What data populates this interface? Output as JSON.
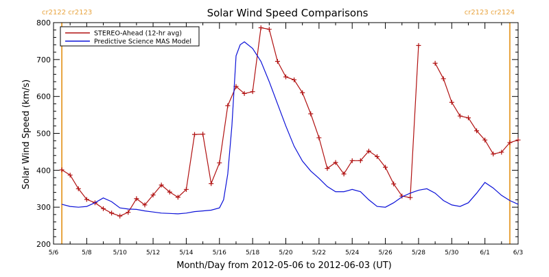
{
  "chart_data": {
    "type": "line",
    "title": "Solar Wind Speed Comparisons",
    "xlabel": "Month/Day from 2012-05-06 to 2012-06-03 (UT)",
    "ylabel": "Solar Wind Speed (km/s)",
    "xlim": [
      "2012-05-06",
      "2012-06-03"
    ],
    "ylim": [
      200,
      800
    ],
    "x_ticks": [
      {
        "date": "2012-05-06",
        "label": "5/6"
      },
      {
        "date": "2012-05-08",
        "label": "5/8"
      },
      {
        "date": "2012-05-10",
        "label": "5/10"
      },
      {
        "date": "2012-05-12",
        "label": "5/12"
      },
      {
        "date": "2012-05-14",
        "label": "5/14"
      },
      {
        "date": "2012-05-16",
        "label": "5/16"
      },
      {
        "date": "2012-05-18",
        "label": "5/18"
      },
      {
        "date": "2012-05-20",
        "label": "5/20"
      },
      {
        "date": "2012-05-22",
        "label": "5/22"
      },
      {
        "date": "2012-05-24",
        "label": "5/24"
      },
      {
        "date": "2012-05-26",
        "label": "5/26"
      },
      {
        "date": "2012-05-28",
        "label": "5/28"
      },
      {
        "date": "2012-05-30",
        "label": "5/30"
      },
      {
        "date": "2012-06-01",
        "label": "6/1"
      },
      {
        "date": "2012-06-03",
        "label": "6/3"
      }
    ],
    "y_ticks": [
      200,
      300,
      400,
      500,
      600,
      700,
      800
    ],
    "grid": false,
    "legend_position": "top-left",
    "carrington_markers": [
      {
        "date": "2012-05-06 12:00",
        "labels": [
          "cr2122",
          "cr2123"
        ],
        "color": "#e8a33d",
        "align": "left"
      },
      {
        "date": "2012-06-02 12:00",
        "labels": [
          "cr2123",
          "cr2124"
        ],
        "color": "#e8a33d",
        "align": "right"
      }
    ],
    "series": [
      {
        "name": "STEREO-Ahead (12-hr avg)",
        "color": "#b01010",
        "marker": "plus",
        "segments": [
          [
            [
              "2012-05-06 12:00",
              401
            ],
            [
              "2012-05-07 00:00",
              387
            ],
            [
              "2012-05-07 12:00",
              350
            ],
            [
              "2012-05-08 00:00",
              321
            ],
            [
              "2012-05-08 12:00",
              312
            ],
            [
              "2012-05-09 00:00",
              296
            ],
            [
              "2012-05-09 12:00",
              284
            ],
            [
              "2012-05-10 00:00",
              276
            ],
            [
              "2012-05-10 12:00",
              286
            ],
            [
              "2012-05-11 00:00",
              323
            ],
            [
              "2012-05-11 12:00",
              306
            ],
            [
              "2012-05-12 00:00",
              333
            ],
            [
              "2012-05-12 12:00",
              360
            ],
            [
              "2012-05-13 00:00",
              341
            ],
            [
              "2012-05-13 12:00",
              327
            ],
            [
              "2012-05-14 00:00",
              348
            ],
            [
              "2012-05-14 12:00",
              497
            ],
            [
              "2012-05-15 00:00",
              498
            ],
            [
              "2012-05-15 12:00",
              364
            ],
            [
              "2012-05-16 00:00",
              420
            ],
            [
              "2012-05-16 12:00",
              575
            ],
            [
              "2012-05-17 00:00",
              627
            ],
            [
              "2012-05-17 12:00",
              608
            ],
            [
              "2012-05-18 00:00",
              613
            ],
            [
              "2012-05-18 12:00",
              786
            ],
            [
              "2012-05-19 00:00",
              782
            ],
            [
              "2012-05-19 12:00",
              695
            ],
            [
              "2012-05-20 00:00",
              653
            ],
            [
              "2012-05-20 12:00",
              645
            ],
            [
              "2012-05-21 00:00",
              610
            ],
            [
              "2012-05-21 12:00",
              553
            ],
            [
              "2012-05-22 00:00",
              488
            ],
            [
              "2012-05-22 12:00",
              405
            ],
            [
              "2012-05-23 00:00",
              421
            ],
            [
              "2012-05-23 12:00",
              390
            ],
            [
              "2012-05-24 00:00",
              426
            ],
            [
              "2012-05-24 12:00",
              426
            ],
            [
              "2012-05-25 00:00",
              452
            ],
            [
              "2012-05-25 12:00",
              437
            ],
            [
              "2012-05-26 00:00",
              408
            ],
            [
              "2012-05-26 12:00",
              363
            ],
            [
              "2012-05-27 00:00",
              330
            ],
            [
              "2012-05-27 12:00",
              326
            ],
            [
              "2012-05-28 00:00",
              738
            ]
          ],
          [
            [
              "2012-05-29 00:00",
              690
            ],
            [
              "2012-05-29 12:00",
              648
            ],
            [
              "2012-05-30 00:00",
              584
            ],
            [
              "2012-05-30 12:00",
              547
            ],
            [
              "2012-05-31 00:00",
              542
            ],
            [
              "2012-05-31 12:00",
              507
            ],
            [
              "2012-06-01 00:00",
              482
            ],
            [
              "2012-06-01 12:00",
              444
            ],
            [
              "2012-06-02 00:00",
              449
            ],
            [
              "2012-06-02 12:00",
              475
            ],
            [
              "2012-06-03 00:00",
              482
            ]
          ]
        ]
      },
      {
        "name": "Predictive Science MAS Model",
        "color": "#0a10d8",
        "marker": "none",
        "points": [
          [
            "2012-05-06 12:00",
            308
          ],
          [
            "2012-05-07 00:00",
            302
          ],
          [
            "2012-05-07 12:00",
            300
          ],
          [
            "2012-05-08 00:00",
            302
          ],
          [
            "2012-05-08 12:00",
            312
          ],
          [
            "2012-05-09 00:00",
            325
          ],
          [
            "2012-05-09 12:00",
            315
          ],
          [
            "2012-05-10 00:00",
            298
          ],
          [
            "2012-05-10 12:00",
            295
          ],
          [
            "2012-05-11 00:00",
            294
          ],
          [
            "2012-05-11 12:00",
            290
          ],
          [
            "2012-05-12 00:00",
            287
          ],
          [
            "2012-05-12 12:00",
            284
          ],
          [
            "2012-05-13 00:00",
            283
          ],
          [
            "2012-05-13 12:00",
            282
          ],
          [
            "2012-05-14 00:00",
            284
          ],
          [
            "2012-05-14 12:00",
            288
          ],
          [
            "2012-05-15 00:00",
            290
          ],
          [
            "2012-05-15 12:00",
            292
          ],
          [
            "2012-05-16 00:00",
            298
          ],
          [
            "2012-05-16 06:00",
            320
          ],
          [
            "2012-05-16 12:00",
            390
          ],
          [
            "2012-05-16 18:00",
            520
          ],
          [
            "2012-05-17 00:00",
            710
          ],
          [
            "2012-05-17 06:00",
            740
          ],
          [
            "2012-05-17 12:00",
            748
          ],
          [
            "2012-05-18 00:00",
            730
          ],
          [
            "2012-05-18 12:00",
            695
          ],
          [
            "2012-05-19 00:00",
            640
          ],
          [
            "2012-05-19 12:00",
            580
          ],
          [
            "2012-05-20 00:00",
            520
          ],
          [
            "2012-05-20 12:00",
            465
          ],
          [
            "2012-05-21 00:00",
            425
          ],
          [
            "2012-05-21 12:00",
            398
          ],
          [
            "2012-05-22 00:00",
            378
          ],
          [
            "2012-05-22 12:00",
            356
          ],
          [
            "2012-05-23 00:00",
            342
          ],
          [
            "2012-05-23 12:00",
            342
          ],
          [
            "2012-05-24 00:00",
            348
          ],
          [
            "2012-05-24 12:00",
            342
          ],
          [
            "2012-05-25 00:00",
            320
          ],
          [
            "2012-05-25 12:00",
            302
          ],
          [
            "2012-05-26 00:00",
            300
          ],
          [
            "2012-05-26 12:00",
            312
          ],
          [
            "2012-05-27 00:00",
            328
          ],
          [
            "2012-05-27 12:00",
            338
          ],
          [
            "2012-05-28 00:00",
            346
          ],
          [
            "2012-05-28 12:00",
            350
          ],
          [
            "2012-05-29 00:00",
            338
          ],
          [
            "2012-05-29 12:00",
            318
          ],
          [
            "2012-05-30 00:00",
            306
          ],
          [
            "2012-05-30 12:00",
            302
          ],
          [
            "2012-05-31 00:00",
            312
          ],
          [
            "2012-05-31 12:00",
            338
          ],
          [
            "2012-06-01 00:00",
            367
          ],
          [
            "2012-06-01 12:00",
            352
          ],
          [
            "2012-06-02 00:00",
            332
          ],
          [
            "2012-06-02 12:00",
            318
          ],
          [
            "2012-06-03 00:00",
            308
          ]
        ]
      }
    ]
  }
}
